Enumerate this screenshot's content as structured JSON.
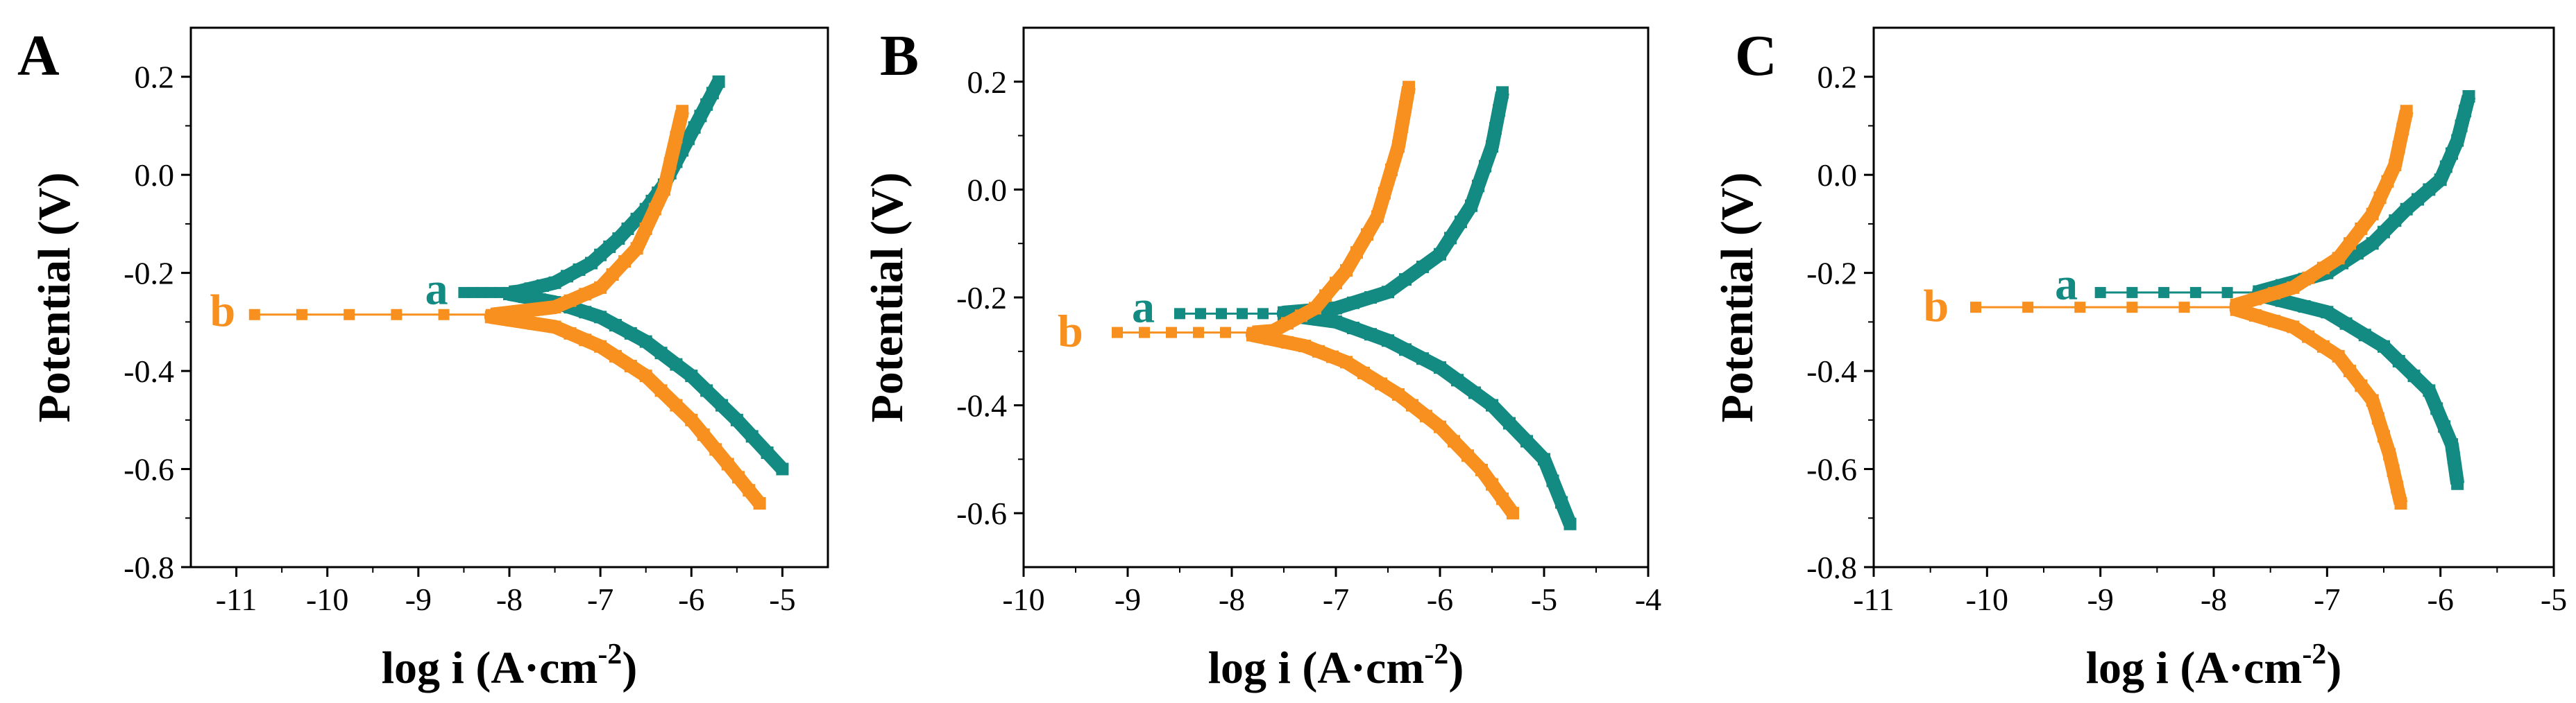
{
  "colors": {
    "series_a": "#138a82",
    "series_b": "#f7901e",
    "axis": "#000000",
    "background": "#ffffff"
  },
  "chart_data": [
    {
      "type": "line",
      "panel_label": "A",
      "xlabel": "log i (A·cm",
      "xlabel_sup": "-2",
      "xlabel_close": ")",
      "ylabel": "Potential (V)",
      "xlim": [
        -11.5,
        -4.5
      ],
      "ylim": [
        -0.8,
        0.3
      ],
      "xticks": [
        -11,
        -10,
        -9,
        -8,
        -7,
        -6,
        -5
      ],
      "xtick_labels": [
        "-11",
        "-10",
        "-9",
        "-8",
        "-7",
        "-6",
        "-5"
      ],
      "yticks": [
        -0.8,
        -0.6,
        -0.4,
        -0.2,
        0.0,
        0.2
      ],
      "ytick_labels": [
        "-0.8",
        "-0.6",
        "-0.4",
        "-0.2",
        "0.0",
        "0.2"
      ],
      "grid": false,
      "series": [
        {
          "name": "a",
          "label_at": [
            -8.8,
            -0.235
          ],
          "corr": [
            -8.5,
            -0.24
          ],
          "anodic": [
            [
              -7.9,
              -0.238
            ],
            [
              -7.5,
              -0.22
            ],
            [
              -7.1,
              -0.18
            ],
            [
              -6.8,
              -0.13
            ],
            [
              -6.5,
              -0.07
            ],
            [
              -6.3,
              -0.02
            ],
            [
              -6.1,
              0.05
            ],
            [
              -5.9,
              0.12
            ],
            [
              -5.7,
              0.19
            ]
          ],
          "cathodic": [
            [
              -8.0,
              -0.243
            ],
            [
              -7.5,
              -0.26
            ],
            [
              -7.0,
              -0.29
            ],
            [
              -6.5,
              -0.34
            ],
            [
              -6.0,
              -0.41
            ],
            [
              -5.5,
              -0.5
            ],
            [
              -5.0,
              -0.6
            ]
          ]
        },
        {
          "name": "b",
          "label_at": [
            -11.15,
            -0.28
          ],
          "corr": [
            -10.8,
            -0.285
          ],
          "anodic": [
            [
              -8.1,
              -0.283
            ],
            [
              -7.5,
              -0.27
            ],
            [
              -7.0,
              -0.23
            ],
            [
              -6.6,
              -0.15
            ],
            [
              -6.3,
              -0.03
            ],
            [
              -6.1,
              0.13
            ]
          ],
          "cathodic": [
            [
              -8.2,
              -0.29
            ],
            [
              -7.5,
              -0.31
            ],
            [
              -7.0,
              -0.35
            ],
            [
              -6.5,
              -0.41
            ],
            [
              -6.0,
              -0.5
            ],
            [
              -5.6,
              -0.59
            ],
            [
              -5.25,
              -0.67
            ]
          ]
        }
      ]
    },
    {
      "type": "line",
      "panel_label": "B",
      "xlabel": "log i (A·cm",
      "xlabel_sup": "-2",
      "xlabel_close": ")",
      "ylabel": "Potential (V)",
      "xlim": [
        -10,
        -4
      ],
      "ylim": [
        -0.7,
        0.3
      ],
      "xticks": [
        -10,
        -9,
        -8,
        -7,
        -6,
        -5,
        -4
      ],
      "xtick_labels": [
        "-10",
        "-9",
        "-8",
        "-7",
        "-6",
        "-5",
        "-4"
      ],
      "yticks": [
        -0.6,
        -0.4,
        -0.2,
        0.0,
        0.2
      ],
      "ytick_labels": [
        "-0.6",
        "-0.4",
        "-0.2",
        "0.0",
        "0.2"
      ],
      "grid": false,
      "series": [
        {
          "name": "a",
          "label_at": [
            -8.85,
            -0.22
          ],
          "corr": [
            -8.5,
            -0.23
          ],
          "anodic": [
            [
              -7.5,
              -0.228
            ],
            [
              -7.0,
              -0.22
            ],
            [
              -6.5,
              -0.19
            ],
            [
              -6.0,
              -0.12
            ],
            [
              -5.7,
              -0.03
            ],
            [
              -5.5,
              0.08
            ],
            [
              -5.4,
              0.18
            ]
          ],
          "cathodic": [
            [
              -7.5,
              -0.232
            ],
            [
              -7.0,
              -0.245
            ],
            [
              -6.5,
              -0.28
            ],
            [
              -6.0,
              -0.33
            ],
            [
              -5.5,
              -0.4
            ],
            [
              -5.0,
              -0.5
            ],
            [
              -4.75,
              -0.62
            ]
          ]
        },
        {
          "name": "b",
          "label_at": [
            -9.55,
            -0.265
          ],
          "corr": [
            -9.1,
            -0.265
          ],
          "anodic": [
            [
              -7.6,
              -0.262
            ],
            [
              -7.2,
              -0.22
            ],
            [
              -6.9,
              -0.15
            ],
            [
              -6.6,
              -0.05
            ],
            [
              -6.4,
              0.08
            ],
            [
              -6.3,
              0.19
            ]
          ],
          "cathodic": [
            [
              -7.8,
              -0.27
            ],
            [
              -7.3,
              -0.29
            ],
            [
              -6.9,
              -0.32
            ],
            [
              -6.4,
              -0.38
            ],
            [
              -6.0,
              -0.44
            ],
            [
              -5.6,
              -0.52
            ],
            [
              -5.3,
              -0.6
            ]
          ]
        }
      ]
    },
    {
      "type": "line",
      "panel_label": "C",
      "xlabel": "log i (A·cm",
      "xlabel_sup": "-2",
      "xlabel_close": ")",
      "ylabel": "Potential (V)",
      "xlim": [
        -11,
        -5
      ],
      "ylim": [
        -0.8,
        0.3
      ],
      "xticks": [
        -11,
        -10,
        -9,
        -8,
        -7,
        -6,
        -5
      ],
      "xtick_labels": [
        "-11",
        "-10",
        "-9",
        "-8",
        "-7",
        "-6",
        "-5"
      ],
      "yticks": [
        -0.8,
        -0.6,
        -0.4,
        -0.2,
        0.0,
        0.2
      ],
      "ytick_labels": [
        "-0.8",
        "-0.6",
        "-0.4",
        "-0.2",
        "0.0",
        "0.2"
      ],
      "grid": false,
      "series": [
        {
          "name": "a",
          "label_at": [
            -9.3,
            -0.225
          ],
          "corr": [
            -9.0,
            -0.24
          ],
          "anodic": [
            [
              -7.6,
              -0.238
            ],
            [
              -7.0,
              -0.2
            ],
            [
              -6.6,
              -0.14
            ],
            [
              -6.3,
              -0.07
            ],
            [
              -6.0,
              -0.01
            ],
            [
              -5.85,
              0.07
            ],
            [
              -5.75,
              0.16
            ]
          ],
          "cathodic": [
            [
              -7.6,
              -0.245
            ],
            [
              -7.0,
              -0.28
            ],
            [
              -6.5,
              -0.35
            ],
            [
              -6.1,
              -0.44
            ],
            [
              -5.9,
              -0.55
            ],
            [
              -5.85,
              -0.63
            ]
          ]
        },
        {
          "name": "b",
          "label_at": [
            -10.45,
            -0.27
          ],
          "corr": [
            -10.1,
            -0.27
          ],
          "anodic": [
            [
              -7.8,
              -0.265
            ],
            [
              -7.3,
              -0.23
            ],
            [
              -6.9,
              -0.17
            ],
            [
              -6.6,
              -0.08
            ],
            [
              -6.4,
              0.02
            ],
            [
              -6.3,
              0.13
            ]
          ],
          "cathodic": [
            [
              -7.8,
              -0.275
            ],
            [
              -7.3,
              -0.31
            ],
            [
              -6.9,
              -0.37
            ],
            [
              -6.6,
              -0.46
            ],
            [
              -6.45,
              -0.57
            ],
            [
              -6.35,
              -0.67
            ]
          ]
        }
      ]
    }
  ]
}
